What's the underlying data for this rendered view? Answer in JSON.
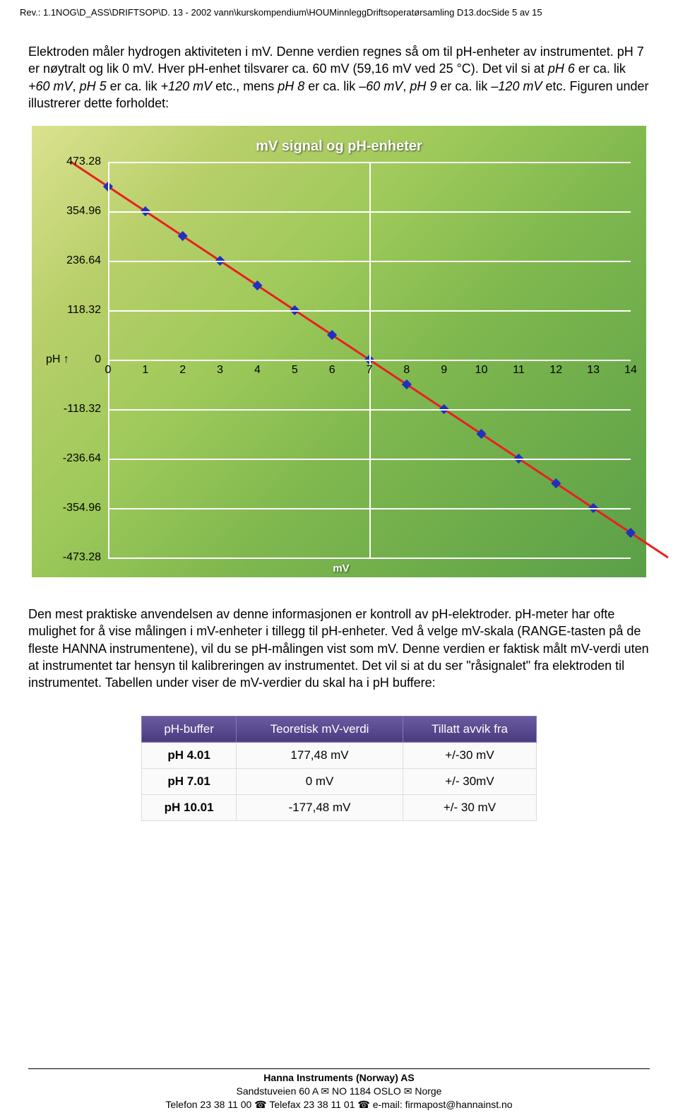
{
  "header": {
    "path": "Rev.: 1.1NOG\\D_ASS\\DRIFTSOP\\D. 13 - 2002 vann\\kurskompendium\\HOUMinnleggDriftsoperatørsamling D13.docSide 5 av 15"
  },
  "para1": {
    "t1": "Elektroden måler hydrogen aktiviteten i mV. Denne verdien regnes så om til pH-enheter av instrumentet. pH 7 er nøytralt og lik 0 mV. Hver pH-enhet tilsvarer ca. 60 mV (59,16 mV ved 25 °C). Det vil si at ",
    "i1": "pH 6",
    "t2": " er ca. lik ",
    "i2": "+60 mV",
    "t3": ", ",
    "i3": "pH 5",
    "t4": " er ca. lik ",
    "i4": "+120 mV",
    "t5": " etc., mens ",
    "i5": "pH 8",
    "t6": " er ca. lik ",
    "i6": "–60 mV",
    "t7": ", ",
    "i7": "pH 9",
    "t8": " er ca. lik ",
    "i8": "–120 mV",
    "t9": " etc. Figuren under illustrerer dette forholdet:"
  },
  "chart": {
    "type": "line",
    "title": "mV signal og pH-enheter",
    "ph_label": "pH ↑",
    "mv_label": "mV",
    "x": [
      -1,
      0,
      1,
      2,
      3,
      4,
      5,
      6,
      7,
      8,
      9,
      10,
      11,
      12,
      13,
      14,
      15
    ],
    "y": [
      473.28,
      414.12,
      354.96,
      295.8,
      236.64,
      177.48,
      118.32,
      59.16,
      0,
      -59.16,
      -118.32,
      -177.48,
      -236.64,
      -295.8,
      -354.96,
      -414.12,
      -473.28
    ],
    "yticks": [
      473.28,
      354.96,
      236.64,
      118.32,
      0,
      -118.32,
      -236.64,
      -354.96,
      -473.28
    ],
    "ytick_labels": [
      "473.28",
      "354.96",
      "236.64",
      "118.32",
      "0",
      "-118.32",
      "-236.64",
      "-354.96",
      "-473.28"
    ],
    "xticks": [
      0,
      1,
      2,
      3,
      4,
      5,
      6,
      7,
      8,
      9,
      10,
      11,
      12,
      13,
      14
    ],
    "xtick_labels": [
      "0",
      "1",
      "2",
      "3",
      "4",
      "5",
      "6",
      "7",
      "8",
      "9",
      "10",
      "11",
      "12",
      "13",
      "14"
    ],
    "line_color": "#e82020",
    "marker_color": "#2030c0",
    "grid_color": "#ffffff",
    "ylim": [
      -473.28,
      473.28
    ],
    "xlim": [
      0,
      14
    ]
  },
  "para2": {
    "text": "Den mest praktiske anvendelsen av denne informasjonen er kontroll av pH-elektroder. pH-meter har ofte mulighet for å vise målingen i mV-enheter i tillegg til pH-enheter. Ved å velge mV-skala (RANGE-tasten på de fleste HANNA instrumentene), vil du se pH-målingen vist som mV. Denne verdien er faktisk målt mV-verdi uten at instrumentet tar hensyn til kalibreringen av instrumentet. Det vil si at du ser \"råsignalet\" fra elektroden til instrumentet. Tabellen under viser de mV-verdier du skal ha i pH buffere:"
  },
  "table": {
    "headers": [
      "pH-buffer",
      "Teoretisk mV-verdi",
      "Tillatt avvik fra"
    ],
    "rows": [
      [
        "pH 4.01",
        "177,48 mV",
        "+/-30 mV"
      ],
      [
        "pH 7.01",
        "0 mV",
        "+/- 30mV"
      ],
      [
        "pH 10.01",
        "-177,48 mV",
        "+/- 30 mV"
      ]
    ]
  },
  "footer": {
    "l1": "Hanna Instruments (Norway) AS",
    "l2a": "Sandstuveien 60 A ",
    "l2b": " NO 1184 OSLO ",
    "l2c": " Norge",
    "l3a": "Telefon 23 38 11 00 ",
    "l3b": " Telefax 23 38 11 01 ",
    "l3c": " e-mail: firmapost@hannainst.no"
  }
}
